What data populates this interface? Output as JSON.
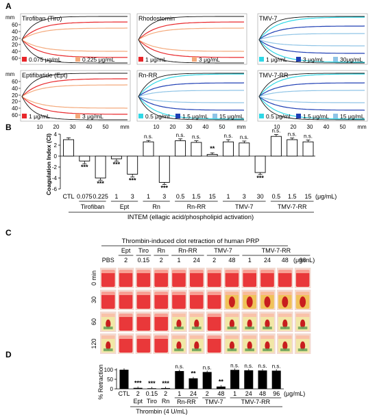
{
  "panelA": {
    "letter": "A",
    "mm_left_label": "mm",
    "mm_bottom_label": "mm",
    "ticks_upper": [
      "60",
      "40",
      "20",
      "20",
      "40",
      "60"
    ],
    "xticks": [
      "10",
      "20",
      "30",
      "40",
      "50"
    ],
    "subplots": [
      {
        "title": "Tirofiban (Tiro)",
        "legend": [
          {
            "label": "0.075 μg/mL",
            "color": "#e8262a"
          },
          {
            "label": "0.225 μg/mL",
            "color": "#f4a97b"
          }
        ],
        "curve_colors": [
          "#e8262a",
          "#f4a97b"
        ]
      },
      {
        "title": "Rhodostomin",
        "legend": [
          {
            "label": "1 μg/mL",
            "color": "#e8262a"
          },
          {
            "label": "3 μg/mL",
            "color": "#f4a97b"
          }
        ],
        "curve_colors": [
          "#e8262a",
          "#f4a97b"
        ]
      },
      {
        "title": "TMV-7",
        "legend": [
          {
            "label": "1 μg/mL",
            "color": "#2fd8e6"
          },
          {
            "label": "3 μg/mL",
            "color": "#1f3fb4"
          },
          {
            "label": "30μg/mL",
            "color": "#8fc4e6"
          }
        ],
        "curve_colors": [
          "#2fd8e6",
          "#1f3fb4",
          "#8fc4e6"
        ]
      },
      {
        "title": "Eptifibatide (Ept)",
        "legend": [
          {
            "label": "1 μg/mL",
            "color": "#e8262a"
          },
          {
            "label": "3 μg/mL",
            "color": "#f4a97b"
          }
        ],
        "curve_colors": [
          "#e8262a",
          "#f4a97b"
        ]
      },
      {
        "title": "Rn-RR",
        "legend": [
          {
            "label": "0.5 μg/mL",
            "color": "#2fd8e6"
          },
          {
            "label": "1.5 μg/mL",
            "color": "#1f3fb4"
          },
          {
            "label": "15 μg/mL",
            "color": "#8fc4e6"
          }
        ],
        "curve_colors": [
          "#2fd8e6",
          "#1f3fb4",
          "#8fc4e6"
        ]
      },
      {
        "title": "TMV-7-RR",
        "legend": [
          {
            "label": "0.5 μg/mL",
            "color": "#2fd8e6"
          },
          {
            "label": "1.5 μg/mL",
            "color": "#1f3fb4"
          },
          {
            "label": "15 μg/mL",
            "color": "#8fc4e6"
          }
        ],
        "curve_colors": [
          "#2fd8e6",
          "#1f3fb4",
          "#8fc4e6"
        ]
      }
    ]
  },
  "panelB": {
    "letter": "B",
    "chart_data": {
      "type": "bar",
      "ylabel": "Coagulation Index (CI)",
      "ylim": [
        -6,
        4
      ],
      "yticks": [
        "4",
        "2",
        "0",
        "-2",
        "-4",
        "-6"
      ],
      "categories": [
        "CTL",
        "0.075",
        "0.225",
        "1",
        "3",
        "1",
        "3",
        "0.5",
        "1.5",
        "15",
        "1",
        "3",
        "30",
        "0.5",
        "1.5",
        "15"
      ],
      "values": [
        3.0,
        -0.9,
        -4.0,
        -0.5,
        -3.3,
        2.6,
        -4.8,
        2.8,
        2.5,
        0.3,
        2.6,
        2.4,
        -3.0,
        3.6,
        3.0,
        2.6
      ],
      "errors": [
        0.35,
        0.5,
        0.4,
        0.4,
        0.5,
        0.25,
        0.4,
        0.35,
        0.3,
        0.3,
        0.4,
        0.35,
        0.35,
        0.35,
        0.3,
        0.35
      ],
      "annotations": [
        "",
        "***",
        "***",
        "***",
        "***",
        "n.s.",
        "***",
        "n.s.",
        "n.s.",
        "**",
        "n.s.",
        "n.s.",
        "***",
        "n.s.",
        "n.s.",
        "n.s."
      ],
      "groups": [
        {
          "label": "Tirofiban",
          "from": 1,
          "to": 2
        },
        {
          "label": "Ept",
          "from": 3,
          "to": 4
        },
        {
          "label": "Rn",
          "from": 5,
          "to": 6
        },
        {
          "label": "Rn-RR",
          "from": 7,
          "to": 9
        },
        {
          "label": "TMV-7",
          "from": 10,
          "to": 12
        },
        {
          "label": "TMV-7-RR",
          "from": 13,
          "to": 15
        }
      ],
      "unit": "(μg/mL)",
      "xlabel": "INTEM (ellagic acid/phospholipid activation)"
    }
  },
  "panelC": {
    "letter": "C",
    "title": "Thrombin-induced clot retraction of human PRP",
    "group_labels": [
      "Ept",
      "Tiro",
      "Rn",
      "Rn-RR",
      "TMV-7",
      "TMV-7-RR"
    ],
    "columns": [
      "PBS",
      "2",
      "0.15",
      "2",
      "1",
      "24",
      "2",
      "48",
      "1",
      "24",
      "48",
      "96"
    ],
    "unit": "(μg/mL)",
    "rows": [
      "0 min",
      "30",
      "60",
      "120"
    ],
    "clot_shown": [
      [
        false,
        false,
        false,
        false,
        false,
        false,
        false,
        false,
        false,
        false,
        false,
        false
      ],
      [
        false,
        false,
        false,
        false,
        false,
        false,
        false,
        true,
        true,
        true,
        true,
        true
      ],
      [
        true,
        false,
        false,
        false,
        true,
        true,
        false,
        true,
        true,
        true,
        true,
        true
      ],
      [
        true,
        false,
        false,
        false,
        true,
        true,
        false,
        true,
        true,
        true,
        true,
        true
      ]
    ]
  },
  "panelD": {
    "letter": "D",
    "chart_data": {
      "type": "bar",
      "ylabel": "% Retraction",
      "ylim": [
        0,
        100
      ],
      "yticks": [
        "100",
        "50",
        "0"
      ],
      "categories": [
        "CTL",
        "2",
        "0.15",
        "2",
        "1",
        "24",
        "2",
        "48",
        "1",
        "24",
        "48",
        "96"
      ],
      "values": [
        100,
        5,
        3,
        4,
        93,
        55,
        88,
        12,
        99,
        97,
        96,
        95
      ],
      "annotations": [
        "",
        "***",
        "***",
        "***",
        "n.s.",
        "**",
        "n.s.",
        "**",
        "n.s.",
        "n.s.",
        "n.s.",
        "n.s."
      ],
      "group_labels": [
        {
          "label": "Ept",
          "index": 1
        },
        {
          "label": "Tiro",
          "index": 2
        },
        {
          "label": "Rn",
          "index": 3
        },
        {
          "label": "Rn-RR",
          "from": 4,
          "to": 5
        },
        {
          "label": "TMV-7",
          "from": 6,
          "to": 7
        },
        {
          "label": "TMV-7-RR",
          "from": 8,
          "to": 11
        }
      ],
      "unit": "(μg/mL)",
      "xlabel": "Thrombin (4 U/mL)"
    }
  }
}
